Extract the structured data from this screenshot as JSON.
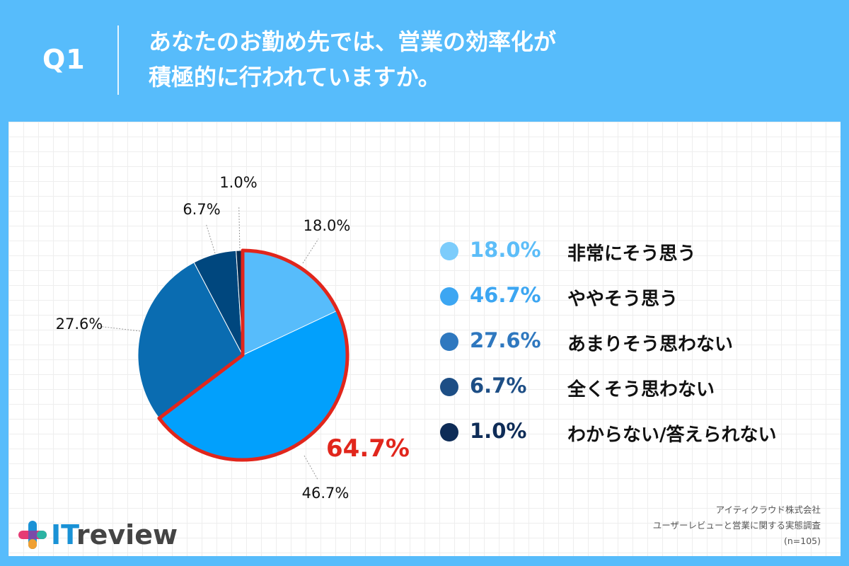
{
  "header": {
    "question_label": "Q1",
    "title": "あなたのお勤め先では、営業の効率化が\n積極的に行われていますか。"
  },
  "chart_data": {
    "type": "pie",
    "start_angle_deg": 0,
    "direction": "clockwise",
    "slices": [
      {
        "label": "非常にそう思う",
        "value": 18.0,
        "display": "18.0%",
        "color": "#57bcfb"
      },
      {
        "label": "ややそう思う",
        "value": 46.7,
        "display": "46.7%",
        "color": "#02a0fc"
      },
      {
        "label": "あまりそう思わない",
        "value": 27.6,
        "display": "27.6%",
        "color": "#0a6cb1"
      },
      {
        "label": "全くそう思わない",
        "value": 6.7,
        "display": "6.7%",
        "color": "#00477e"
      },
      {
        "label": "わからない/答えられない",
        "value": 1.0,
        "display": "1.0%",
        "color": "#062d52"
      }
    ],
    "highlight": {
      "slices": [
        0,
        1
      ],
      "value": "64.7%",
      "color": "#e1261c"
    }
  },
  "legend": {
    "items": [
      {
        "value": "18.0%",
        "label": "非常にそう思う",
        "dot_color": "#7cccfb",
        "text_color": "#5cbdf8"
      },
      {
        "value": "46.7%",
        "label": "ややそう思う",
        "dot_color": "#3ca6f2",
        "text_color": "#3ca6f2"
      },
      {
        "value": "27.6%",
        "label": "あまりそう思わない",
        "dot_color": "#2f78bf",
        "text_color": "#2f78bf"
      },
      {
        "value": "6.7%",
        "label": "全くそう思わない",
        "dot_color": "#1d4e85",
        "text_color": "#1d4e85"
      },
      {
        "value": "1.0%",
        "label": "わからない/答えられない",
        "dot_color": "#0e2c57",
        "text_color": "#0e2c57"
      }
    ]
  },
  "logo": {
    "prefix": "IT",
    "suffix": "review"
  },
  "credit": {
    "company": "アイティクラウド株式会社",
    "survey": "ユーザーレビューと営業に関する実態調査",
    "sample": "(n=105)"
  }
}
